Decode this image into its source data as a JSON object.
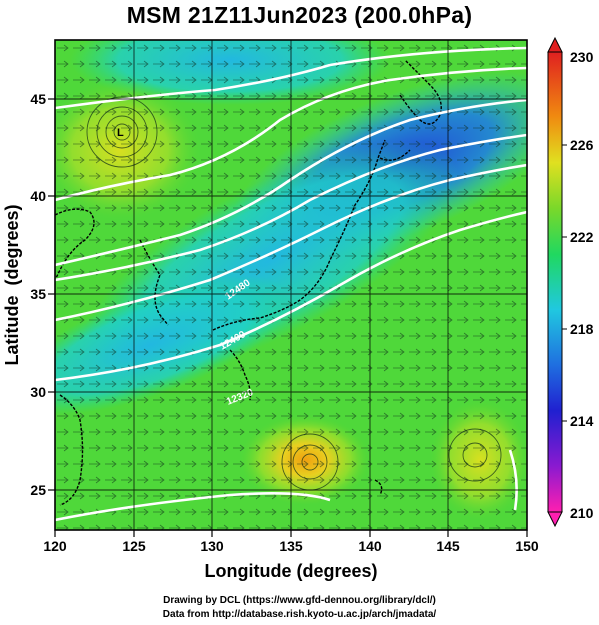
{
  "title": "MSM 21Z11Jun2023 (200.0hPa)",
  "axes": {
    "xlabel": "Longitude (degrees)",
    "ylabel": "Latitude  (degrees)",
    "x_ticks": [
      "120",
      "125",
      "130",
      "135",
      "140",
      "145",
      "150"
    ],
    "y_ticks": [
      "25",
      "30",
      "35",
      "40",
      "45"
    ],
    "xlim": [
      120,
      150
    ],
    "ylim": [
      22.5,
      47.5
    ]
  },
  "colorbar": {
    "labels": [
      "230",
      "226",
      "222",
      "218",
      "214",
      "210"
    ],
    "range": [
      210,
      230
    ],
    "colors": [
      "#ff1fb0",
      "#7a1ad0",
      "#1f2fd8",
      "#1f7fe0",
      "#20c8d8",
      "#20d860",
      "#8be02a",
      "#f0e020",
      "#f07a10",
      "#e02020"
    ]
  },
  "contours": {
    "color": "#ffffff",
    "labels": [
      "12480",
      "12400",
      "12320"
    ]
  },
  "features": {
    "low_center": "L",
    "warm_spot_near": "135E 27N"
  },
  "credits": {
    "line1": "Drawing by DCL (https://www.gfd-dennou.org/library/dcl/)",
    "line2": "Data from http://database.rish.kyoto-u.ac.jp/arch/jmadata/"
  }
}
